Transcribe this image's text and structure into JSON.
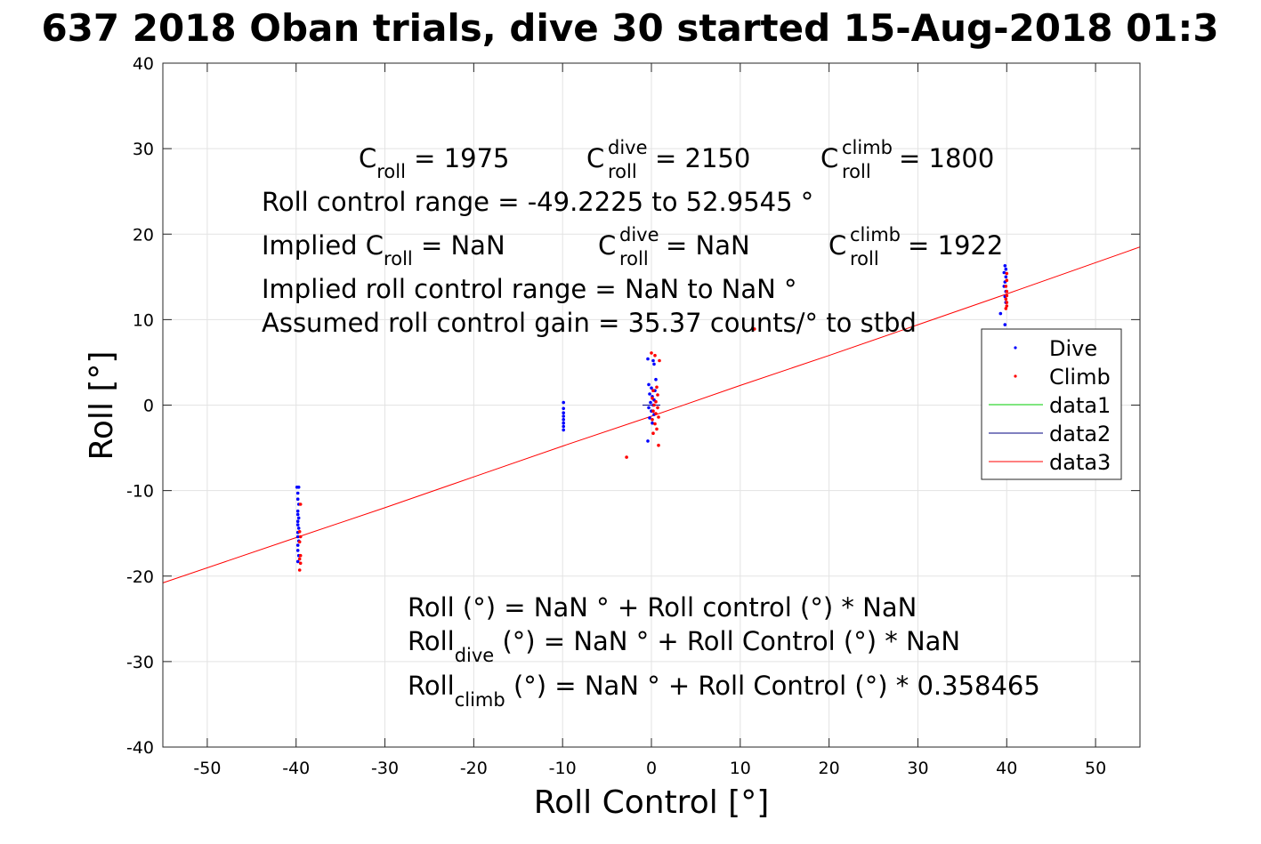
{
  "chart_data": {
    "type": "scatter",
    "title": "637 2018 Oban trials, dive 30 started 15-Aug-2018 01:3",
    "xlabel": "Roll Control [°]",
    "ylabel": "Roll [°]",
    "xlim": [
      -55,
      55
    ],
    "ylim": [
      -40,
      40
    ],
    "xticks": [
      -50,
      -40,
      -30,
      -20,
      -10,
      0,
      10,
      20,
      30,
      40,
      50
    ],
    "yticks": [
      -40,
      -30,
      -20,
      -10,
      0,
      10,
      20,
      30,
      40
    ],
    "grid": true,
    "legend_position": "right",
    "colors": {
      "dive": "#0000ff",
      "climb": "#ff0000",
      "data1": "#00cc00",
      "data2": "#000080",
      "data3": "#ff0000"
    },
    "legend": [
      "Dive",
      "Climb",
      "data1",
      "data2",
      "data3"
    ],
    "series": [
      {
        "name": "Dive",
        "kind": "points",
        "points": [
          [
            -39.9,
            -9.6
          ],
          [
            -39.7,
            -9.6
          ],
          [
            -39.8,
            -10.3
          ],
          [
            -39.8,
            -11.0
          ],
          [
            -39.7,
            -11.6
          ],
          [
            -39.8,
            -12.4
          ],
          [
            -39.8,
            -12.8
          ],
          [
            -39.7,
            -13.2
          ],
          [
            -39.8,
            -13.6
          ],
          [
            -39.8,
            -14.0
          ],
          [
            -39.7,
            -14.4
          ],
          [
            -39.8,
            -14.9
          ],
          [
            -39.8,
            -15.4
          ],
          [
            -39.7,
            -15.9
          ],
          [
            -39.8,
            -16.4
          ],
          [
            -39.8,
            -17.0
          ],
          [
            -39.7,
            -17.6
          ],
          [
            -39.8,
            -18.3
          ],
          [
            -9.9,
            0.3
          ],
          [
            -9.9,
            -0.4
          ],
          [
            -9.9,
            -0.9
          ],
          [
            -9.9,
            -1.3
          ],
          [
            -9.9,
            -1.7
          ],
          [
            -9.9,
            -2.1
          ],
          [
            -9.9,
            -2.5
          ],
          [
            -9.9,
            -2.9
          ],
          [
            -0.4,
            5.4
          ],
          [
            0.2,
            5.2
          ],
          [
            0.3,
            4.8
          ],
          [
            0.5,
            3.0
          ],
          [
            -0.3,
            2.4
          ],
          [
            0.0,
            2.0
          ],
          [
            0.4,
            1.7
          ],
          [
            -0.2,
            1.3
          ],
          [
            0.1,
            1.0
          ],
          [
            0.3,
            0.6
          ],
          [
            -0.1,
            0.3
          ],
          [
            0.2,
            0.0
          ],
          [
            -0.3,
            -0.3
          ],
          [
            0.0,
            -0.7
          ],
          [
            0.3,
            -1.1
          ],
          [
            -0.2,
            -1.5
          ],
          [
            0.1,
            -2.1
          ],
          [
            -0.4,
            -4.2
          ],
          [
            39.8,
            16.3
          ],
          [
            39.9,
            15.9
          ],
          [
            39.7,
            15.5
          ],
          [
            39.9,
            15.0
          ],
          [
            39.8,
            14.4
          ],
          [
            39.7,
            13.9
          ],
          [
            39.9,
            13.3
          ],
          [
            39.8,
            12.7
          ],
          [
            39.9,
            12.0
          ],
          [
            39.3,
            10.7
          ],
          [
            39.8,
            9.4
          ]
        ]
      },
      {
        "name": "Climb",
        "kind": "points",
        "points": [
          [
            -39.5,
            -11.6
          ],
          [
            -39.6,
            -14.8
          ],
          [
            -39.5,
            -15.4
          ],
          [
            -39.6,
            -16.0
          ],
          [
            -39.5,
            -17.6
          ],
          [
            -39.6,
            -18.0
          ],
          [
            -39.5,
            -18.5
          ],
          [
            -39.6,
            -19.3
          ],
          [
            -2.8,
            -6.1
          ],
          [
            0.0,
            6.1
          ],
          [
            0.4,
            5.8
          ],
          [
            0.9,
            5.2
          ],
          [
            0.6,
            2.1
          ],
          [
            0.2,
            1.7
          ],
          [
            0.7,
            1.2
          ],
          [
            0.1,
            0.8
          ],
          [
            0.5,
            0.4
          ],
          [
            0.3,
            0.0
          ],
          [
            0.7,
            -0.3
          ],
          [
            0.2,
            -0.7
          ],
          [
            0.5,
            -1.0
          ],
          [
            0.8,
            -1.4
          ],
          [
            0.1,
            -1.7
          ],
          [
            0.4,
            -2.2
          ],
          [
            0.6,
            -2.8
          ],
          [
            0.2,
            -3.3
          ],
          [
            0.8,
            -4.7
          ],
          [
            11.6,
            8.9
          ],
          [
            40.0,
            15.4
          ],
          [
            40.0,
            14.6
          ],
          [
            39.9,
            13.9
          ],
          [
            40.0,
            13.3
          ],
          [
            40.0,
            12.8
          ],
          [
            39.9,
            12.4
          ],
          [
            40.0,
            12.0
          ],
          [
            40.0,
            11.6
          ],
          [
            39.9,
            11.3
          ]
        ]
      },
      {
        "name": "data2",
        "kind": "line",
        "points": [
          [
            -1.0,
            0.0
          ],
          [
            1.0,
            0.0
          ]
        ]
      },
      {
        "name": "data3",
        "kind": "line",
        "points": [
          [
            -55,
            -20.8
          ],
          [
            -40,
            -15.5
          ],
          [
            -30,
            -12.0
          ],
          [
            -20,
            -8.4
          ],
          [
            -10,
            -4.8
          ],
          [
            0,
            -1.3
          ],
          [
            10,
            2.3
          ],
          [
            20,
            5.8
          ],
          [
            30,
            9.4
          ],
          [
            40,
            13.0
          ],
          [
            55,
            18.5
          ]
        ]
      }
    ],
    "annotations": {
      "c_roll": {
        "base": "C",
        "sub": "roll",
        "value": " = 1975"
      },
      "c_dive": {
        "base": "C",
        "sup": "dive",
        "sub": "roll",
        "value": " = 2150"
      },
      "c_climb": {
        "base": "C",
        "sup": "climb",
        "sub": "roll",
        "value": " = 1800"
      },
      "range": "Roll control range = -49.2225 to 52.9545 °",
      "implied_prefix": "Implied C",
      "implied_sub": "roll",
      "implied_value": " =  NaN",
      "implied_dive": {
        "base": "C",
        "sup": "dive",
        "sub": "roll",
        "value": " =  NaN"
      },
      "implied_climb": {
        "base": "C",
        "sup": "climb",
        "sub": "roll",
        "value": " = 1922"
      },
      "implied_range": "Implied roll control range = NaN to NaN °",
      "gain": "Assumed roll control gain = 35.37 counts/° to stbd",
      "fit1": "Roll (°) = NaN ° + Roll control (°) * NaN",
      "fit2_base": "Roll",
      "fit2_sub": "dive",
      "fit2_rest": " (°) = NaN ° + Roll Control (°) * NaN",
      "fit3_base": "Roll",
      "fit3_sub": "climb",
      "fit3_rest": " (°) = NaN ° + Roll Control (°) * 0.358465"
    }
  }
}
